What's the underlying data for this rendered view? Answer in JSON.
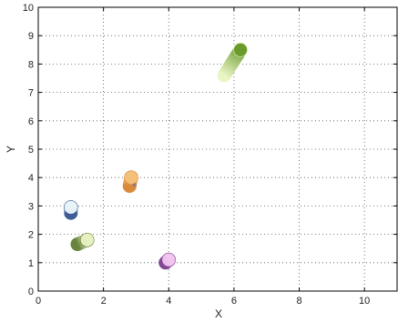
{
  "chart_data": {
    "type": "scatter",
    "title": "",
    "xlabel": "X",
    "ylabel": "Y",
    "xlim": [
      0,
      11
    ],
    "ylim": [
      0,
      10
    ],
    "xticks": [
      0,
      2,
      4,
      6,
      8,
      10
    ],
    "yticks": [
      0,
      1,
      2,
      3,
      4,
      5,
      6,
      7,
      8,
      9,
      10
    ],
    "grid": true,
    "legend": "none",
    "points": [
      {
        "x": 1.0,
        "y": 2.75,
        "x2": 1.0,
        "y2": 2.95,
        "color_start": "#2f4f8f",
        "color_end": "#e8f4f8"
      },
      {
        "x": 1.2,
        "y": 1.65,
        "x2": 1.5,
        "y2": 1.8,
        "color_start": "#5b7a2e",
        "color_end": "#e6f0c0"
      },
      {
        "x": 2.8,
        "y": 3.7,
        "x2": 2.85,
        "y2": 4.0,
        "color_start": "#d6822b",
        "color_end": "#f5c07a"
      },
      {
        "x": 3.9,
        "y": 1.0,
        "x2": 4.0,
        "y2": 1.1,
        "color_start": "#7a3a8a",
        "color_end": "#f2c4f0"
      },
      {
        "x": 5.7,
        "y": 7.6,
        "x2": 6.2,
        "y2": 8.5,
        "color_start": "#e8f5c0",
        "color_end": "#6a9a2c"
      }
    ],
    "marker_note": "*",
    "marker_note_pos": {
      "x": 2.95,
      "y": 3.55
    }
  }
}
